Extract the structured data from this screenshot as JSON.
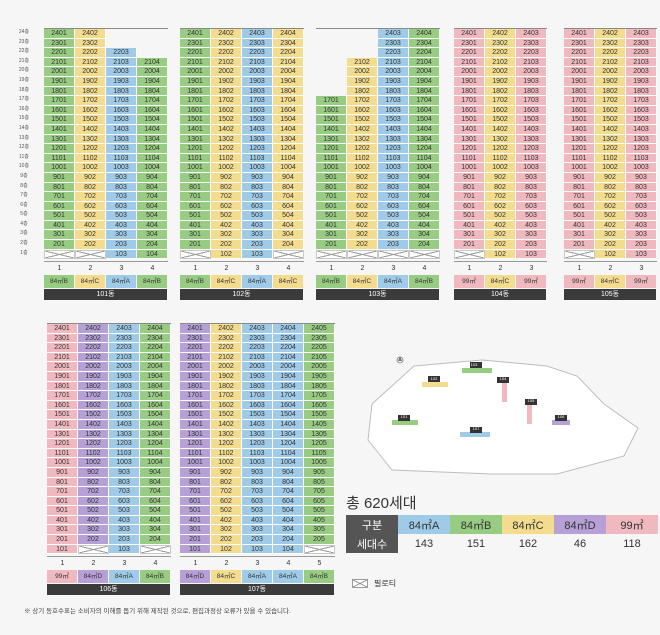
{
  "floor_labels": [
    "24층",
    "23층",
    "22층",
    "21층",
    "20층",
    "19층",
    "18층",
    "17층",
    "16층",
    "15층",
    "14층",
    "13층",
    "12층",
    "11층",
    "10층",
    "9층",
    "8층",
    "7층",
    "6층",
    "5층",
    "4층",
    "3층",
    "2층",
    "1층"
  ],
  "colors": {
    "84A": "#9fcbe8",
    "84B": "#98cc83",
    "84C": "#f3dc8e",
    "84D": "#b6a0d6",
    "99": "#efb9bf",
    "name_bar": "#3b3b3b",
    "table_header": "#555555"
  },
  "buildings": [
    {
      "name": "101동",
      "lines": [
        "1",
        "2",
        "3",
        "4"
      ],
      "types": [
        "84㎡B",
        "84㎡C",
        "84㎡A",
        "84㎡B"
      ],
      "type_keys": [
        "b",
        "c",
        "a",
        "b"
      ],
      "tops": [
        24,
        24,
        22,
        21
      ],
      "first_floor": [
        "",
        "",
        "103",
        "104"
      ]
    },
    {
      "name": "102동",
      "lines": [
        "1",
        "2",
        "3",
        "4"
      ],
      "types": [
        "84㎡B",
        "84㎡C",
        "84㎡A",
        "84㎡C"
      ],
      "type_keys": [
        "b",
        "c",
        "a",
        "c"
      ],
      "tops": [
        24,
        24,
        24,
        24
      ],
      "first_floor": [
        "",
        "102",
        "103",
        ""
      ]
    },
    {
      "name": "103동",
      "lines": [
        "1",
        "2",
        "3",
        "4"
      ],
      "types": [
        "84㎡B",
        "84㎡C",
        "84㎡A",
        "84㎡B"
      ],
      "type_keys": [
        "b",
        "c",
        "a",
        "b"
      ],
      "tops": [
        17,
        21,
        24,
        24
      ],
      "first_floor": [
        "",
        "",
        "",
        ""
      ]
    },
    {
      "name": "104동",
      "lines": [
        "1",
        "2",
        "3"
      ],
      "types": [
        "99㎡",
        "84㎡C",
        "99㎡"
      ],
      "type_keys": [
        "e",
        "c",
        "e"
      ],
      "tops": [
        24,
        24,
        24
      ],
      "first_floor": [
        "",
        "102",
        "103"
      ]
    },
    {
      "name": "105동",
      "lines": [
        "1",
        "2",
        "3"
      ],
      "types": [
        "99㎡",
        "84㎡C",
        "99㎡"
      ],
      "type_keys": [
        "e",
        "c",
        "e"
      ],
      "tops": [
        24,
        24,
        24
      ],
      "first_floor": [
        "",
        "102",
        "103"
      ]
    },
    {
      "name": "106동",
      "lines": [
        "1",
        "2",
        "3",
        "4"
      ],
      "types": [
        "99㎡",
        "84㎡D",
        "84㎡A",
        "84㎡B"
      ],
      "type_keys": [
        "e",
        "d",
        "a",
        "b"
      ],
      "tops": [
        24,
        24,
        24,
        24
      ],
      "first_floor": [
        "101",
        "",
        "103",
        ""
      ]
    },
    {
      "name": "107동",
      "lines": [
        "1",
        "2",
        "3",
        "4",
        "5"
      ],
      "types": [
        "84㎡D",
        "84㎡C",
        "84㎡A",
        "84㎡A",
        "84㎡B"
      ],
      "type_keys": [
        "d",
        "c",
        "a",
        "a",
        "b"
      ],
      "tops": [
        24,
        24,
        24,
        24,
        24
      ],
      "first_floor": [
        "101",
        "102",
        "103",
        "104",
        ""
      ]
    }
  ],
  "site_map": {
    "labels": [
      "101",
      "102",
      "103",
      "104",
      "105",
      "106",
      "107"
    ]
  },
  "summary": {
    "title": "총 620세대",
    "header_label": "구분",
    "count_label": "세대수",
    "columns": [
      {
        "type": "84㎡A",
        "count": "143",
        "key": "a"
      },
      {
        "type": "84㎡B",
        "count": "151",
        "key": "b"
      },
      {
        "type": "84㎡C",
        "count": "162",
        "key": "c"
      },
      {
        "type": "84㎡D",
        "count": "46",
        "key": "d"
      },
      {
        "type": "99㎡",
        "count": "118",
        "key": "e"
      }
    ]
  },
  "legend": {
    "piloti": "필로티"
  },
  "footnote": "※ 상기 동호수표는 소비자의 이해를 돕기 위해 제작된 것으로, 편집과정상 오류가 있을 수 있습니다."
}
